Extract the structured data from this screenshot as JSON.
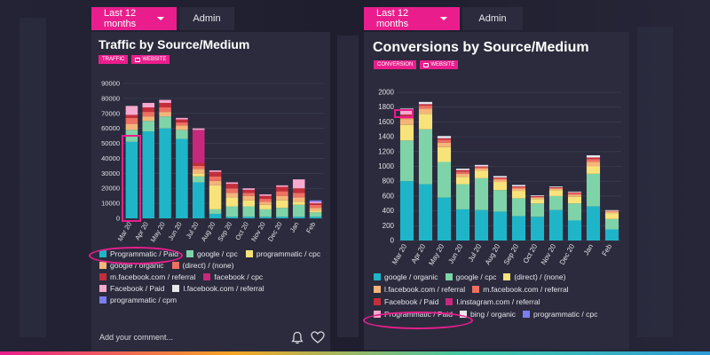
{
  "colors": {
    "accent": "#e91e8c",
    "panel": "#2b2b3d",
    "background": "#1c1c2a"
  },
  "left": {
    "tabs": [
      {
        "label": "Last 12 months",
        "active": true
      },
      {
        "label": "Admin",
        "active": false
      }
    ],
    "title": "Traffic by Source/Medium",
    "tags": [
      {
        "label": "TRAFFIC",
        "icon": ""
      },
      {
        "label": "WEBSITE",
        "icon": "monitor-icon"
      }
    ],
    "comment_placeholder": "Add your comment...",
    "legend": [
      {
        "label": "Programmatic / Paid",
        "color": "#1fb5c9"
      },
      {
        "label": "google / cpc",
        "color": "#7fd3a8"
      },
      {
        "label": "programmatic / cpc",
        "color": "#f7e37a"
      },
      {
        "label": "google / organic",
        "color": "#f5b57a"
      },
      {
        "label": "(direct) / (none)",
        "color": "#ef6f62"
      },
      {
        "label": "m.facebook.com / referral",
        "color": "#c42e3a"
      },
      {
        "label": "facebook / cpc",
        "color": "#c7287c"
      },
      {
        "label": "Facebook / Paid",
        "color": "#f7a8cf"
      },
      {
        "label": "l.facebook.com / referral",
        "color": "#e7e7ef"
      },
      {
        "label": "programmatic / cpm",
        "color": "#7b7df0"
      }
    ]
  },
  "right": {
    "tabs": [
      {
        "label": "Last 12 months",
        "active": true
      },
      {
        "label": "Admin",
        "active": false
      }
    ],
    "title": "Conversions by Source/Medium",
    "tags": [
      {
        "label": "CONVERSION",
        "icon": ""
      },
      {
        "label": "WEBSITE",
        "icon": "monitor-icon"
      }
    ],
    "legend": [
      {
        "label": "google / organic",
        "color": "#1fb5c9"
      },
      {
        "label": "google / cpc",
        "color": "#7fd3a8"
      },
      {
        "label": "(direct) / (none)",
        "color": "#f7e37a"
      },
      {
        "label": "l.facebook.com / referral",
        "color": "#f5b57a"
      },
      {
        "label": "m.facebook.com / referral",
        "color": "#ef6f62"
      },
      {
        "label": "Facebook / Paid",
        "color": "#c42e3a"
      },
      {
        "label": "l.instagram.com / referral",
        "color": "#c7287c"
      },
      {
        "label": "Programmatic / Paid",
        "color": "#f7a8cf"
      },
      {
        "label": "bing / organic",
        "color": "#e7e7ef"
      },
      {
        "label": "programmatic / cpc",
        "color": "#7b7df0"
      }
    ]
  },
  "chart_data": [
    {
      "type": "bar",
      "stacked": true,
      "title": "Traffic by Source/Medium",
      "categories": [
        "Mar 20",
        "Apr 20",
        "May 20",
        "Jun 20",
        "Jul 20",
        "Aug 20",
        "Sep 20",
        "Oct 20",
        "Nov 20",
        "Dec 20",
        "Jan",
        "Feb"
      ],
      "ylim": [
        0,
        90000
      ],
      "yticks": [
        0,
        10000,
        20000,
        30000,
        40000,
        50000,
        60000,
        70000,
        80000,
        90000
      ],
      "grid": true,
      "legend_position": "bottom",
      "series": [
        {
          "name": "Programmatic / Paid",
          "values": [
            51000,
            58000,
            60000,
            53000,
            24000,
            3000,
            1000,
            1000,
            1000,
            1000,
            1000,
            1000
          ]
        },
        {
          "name": "google / cpc",
          "values": [
            8000,
            7000,
            8000,
            6000,
            4000,
            3000,
            7000,
            7000,
            5000,
            6000,
            8000,
            3000
          ]
        },
        {
          "name": "programmatic / cpc",
          "values": [
            0,
            0,
            0,
            0,
            2000,
            16000,
            6000,
            4000,
            3000,
            5000,
            2000,
            1000
          ]
        },
        {
          "name": "google / organic",
          "values": [
            4000,
            3000,
            3000,
            3000,
            3000,
            3000,
            3000,
            3000,
            2000,
            3000,
            3000,
            2000
          ]
        },
        {
          "name": "(direct) / (none)",
          "values": [
            4000,
            3000,
            3000,
            2000,
            2000,
            3000,
            3000,
            2000,
            2000,
            3000,
            3000,
            2000
          ]
        },
        {
          "name": "m.facebook.com / referral",
          "values": [
            2000,
            3000,
            3000,
            2000,
            2000,
            3000,
            3000,
            2000,
            2000,
            3000,
            3000,
            1000
          ]
        },
        {
          "name": "facebook / cpc",
          "values": [
            0,
            0,
            0,
            0,
            22000,
            0,
            0,
            0,
            0,
            0,
            0,
            0
          ]
        },
        {
          "name": "Facebook / Paid",
          "values": [
            6000,
            3000,
            2000,
            1000,
            1000,
            1000,
            1000,
            1000,
            1000,
            1000,
            6000,
            1000
          ]
        },
        {
          "name": "l.facebook.com / referral",
          "values": [
            0,
            0,
            0,
            0,
            0,
            0,
            0,
            0,
            0,
            0,
            0,
            0
          ]
        },
        {
          "name": "programmatic / cpm",
          "values": [
            0,
            0,
            0,
            0,
            0,
            0,
            0,
            0,
            0,
            0,
            0,
            1000
          ]
        }
      ]
    },
    {
      "type": "bar",
      "stacked": true,
      "title": "Conversions by Source/Medium",
      "categories": [
        "Mar 20",
        "Apr 20",
        "May 20",
        "Jun 20",
        "Jul 20",
        "Aug 20",
        "Sep 20",
        "Oct 20",
        "Nov 20",
        "Dec 20",
        "Jan",
        "Feb"
      ],
      "ylim": [
        0,
        2000
      ],
      "yticks": [
        0,
        200,
        400,
        600,
        800,
        1000,
        1200,
        1400,
        1600,
        1800,
        2000
      ],
      "grid": true,
      "legend_position": "bottom",
      "series": [
        {
          "name": "google / organic",
          "values": [
            800,
            760,
            580,
            420,
            410,
            390,
            330,
            320,
            410,
            270,
            460,
            150
          ]
        },
        {
          "name": "google / cpc",
          "values": [
            550,
            740,
            480,
            340,
            430,
            290,
            240,
            180,
            190,
            230,
            440,
            140
          ]
        },
        {
          "name": "(direct) / (none)",
          "values": [
            210,
            210,
            200,
            100,
            100,
            110,
            100,
            60,
            80,
            90,
            100,
            80
          ]
        },
        {
          "name": "l.facebook.com / referral",
          "values": [
            80,
            70,
            60,
            40,
            30,
            30,
            30,
            20,
            20,
            30,
            60,
            20
          ]
        },
        {
          "name": "m.facebook.com / referral",
          "values": [
            40,
            40,
            40,
            30,
            20,
            20,
            20,
            10,
            10,
            20,
            40,
            10
          ]
        },
        {
          "name": "Facebook / Paid",
          "values": [
            20,
            20,
            20,
            20,
            10,
            10,
            10,
            10,
            10,
            10,
            20,
            0
          ]
        },
        {
          "name": "l.instagram.com / referral",
          "values": [
            0,
            0,
            0,
            0,
            0,
            0,
            0,
            0,
            0,
            0,
            0,
            0
          ]
        },
        {
          "name": "Programmatic / Paid",
          "values": [
            50,
            0,
            0,
            0,
            0,
            0,
            0,
            0,
            0,
            0,
            0,
            0
          ]
        },
        {
          "name": "bing / organic",
          "values": [
            30,
            30,
            30,
            20,
            20,
            20,
            20,
            10,
            10,
            10,
            30,
            10
          ]
        },
        {
          "name": "programmatic / cpc",
          "values": [
            0,
            0,
            0,
            0,
            0,
            0,
            0,
            0,
            0,
            0,
            0,
            0
          ]
        }
      ]
    }
  ]
}
